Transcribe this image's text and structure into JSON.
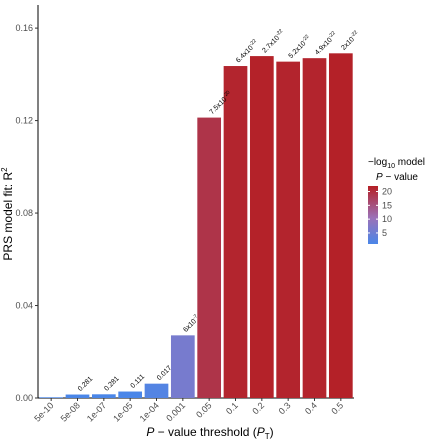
{
  "chart_data": {
    "type": "bar",
    "categories": [
      "5e-10",
      "5e-08",
      "1e-07",
      "1e-05",
      "1e-04",
      "0.001",
      "0.05",
      "0.1",
      "0.2",
      "0.3",
      "0.4",
      "0.5"
    ],
    "values": [
      0.0003,
      0.0015,
      0.0016,
      0.0028,
      0.0062,
      0.0271,
      0.1213,
      0.1436,
      0.1479,
      0.1455,
      0.147,
      0.1491
    ],
    "color_values": [
      1,
      1,
      1,
      1,
      2,
      6.2,
      19.1,
      21.2,
      21.6,
      21.3,
      21.3,
      21.7
    ],
    "bar_labels": [
      "",
      "0.281",
      "0.281",
      "0.111",
      "0.017",
      "6x10",
      "7.5x10",
      "6.4x10",
      "2.7x10",
      "5.2x10",
      "4.9x10",
      "2x10"
    ],
    "bar_label_exponents": [
      "",
      "",
      "",
      "",
      "",
      "-7",
      "-20",
      "-22",
      "-22",
      "-22",
      "-22",
      "-22"
    ],
    "ylabel_main": "PRS model fit:  R",
    "ylabel_sup": "2",
    "xlabel_italic": "P",
    "xlabel_mid": " − value threshold  (",
    "xlabel_sym": "P",
    "xlabel_sub": "T",
    "xlabel_end": ")",
    "ylim": [
      0,
      0.17
    ],
    "yticks": [
      0.0,
      0.04,
      0.08,
      0.12,
      0.16
    ],
    "ytick_labels": [
      "0.00",
      "0.04",
      "0.08",
      "0.12",
      "0.16"
    ],
    "legend": {
      "title_line1_pre": "−log",
      "title_line1_sub": "10",
      "title_line1_post": " model",
      "title_line2_italic": "P",
      "title_line2_rest": " − value",
      "ticks": [
        5,
        10,
        15,
        20
      ],
      "tick_labels": [
        "5",
        "10",
        "15",
        "20"
      ],
      "range": [
        1,
        22
      ],
      "color_low": "#4a86e8",
      "color_mid": "#9b72b8",
      "color_high": "#b51f24",
      "placement": "right"
    }
  }
}
